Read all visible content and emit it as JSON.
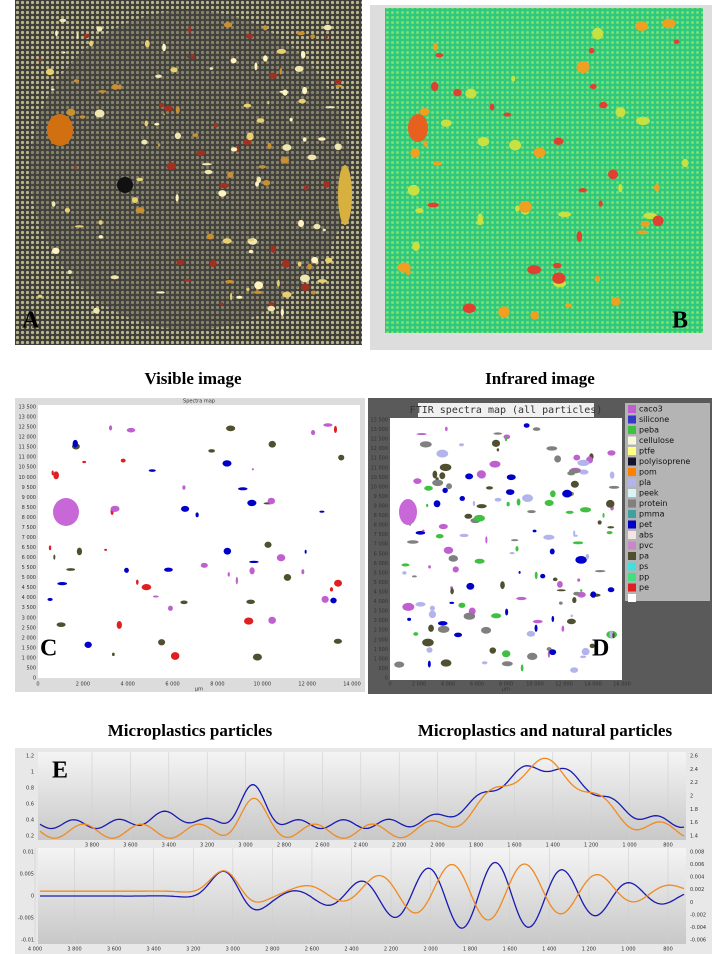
{
  "panels": {
    "a": {
      "letter": "A",
      "caption": "Visible image"
    },
    "b": {
      "letter": "B",
      "caption": "Infrared image"
    },
    "c": {
      "letter": "C",
      "title": "Spectra map",
      "caption": "Microplastics particles",
      "yticks": [
        "13 500",
        "13 000",
        "12 500",
        "12 000",
        "11 500",
        "11 000",
        "10 500",
        "10 000",
        "9 500",
        "9 000",
        "8 500",
        "8 000",
        "7 500",
        "7 000",
        "6 500",
        "6 000",
        "5 500",
        "5 000",
        "4 500",
        "4 000",
        "3 500",
        "3 000",
        "2 500",
        "2 000",
        "1 500",
        "1 000",
        "500",
        "0"
      ],
      "xticks": [
        "0",
        "2 000",
        "4 000",
        "6 000",
        "8 000",
        "10 000",
        "12 000",
        "14 000"
      ],
      "xunit": "µm"
    },
    "d": {
      "letter": "D",
      "title": "FTIR spectra map (all particles)",
      "caption": "Microplastics and natural particles",
      "yticks": [
        "13 500",
        "13 000",
        "12 500",
        "12 000",
        "11 500",
        "11 000",
        "10 500",
        "10 000",
        "9 500",
        "9 000",
        "8 500",
        "8 000",
        "7 500",
        "7 000",
        "6 500",
        "6 000",
        "5 500",
        "5 000",
        "4 500",
        "4 000",
        "3 500",
        "3 000",
        "2 500",
        "2 000",
        "1 500",
        "1 000",
        "500",
        "0"
      ],
      "xticks": [
        "0",
        "2 000",
        "4 000",
        "6 000",
        "8 000",
        "10 000",
        "12 000",
        "14 000",
        "16 000"
      ],
      "xunit": "µm",
      "legend": [
        {
          "name": "caco3",
          "color": "#c060d0"
        },
        {
          "name": "silicone",
          "color": "#3838c8"
        },
        {
          "name": "peba",
          "color": "#40c040"
        },
        {
          "name": "cellulose",
          "color": "#f8f8e0"
        },
        {
          "name": "ptfe",
          "color": "#ffff80"
        },
        {
          "name": "polyisoprene",
          "color": "#141430"
        },
        {
          "name": "pom",
          "color": "#ff8000"
        },
        {
          "name": "pla",
          "color": "#b4b4ec"
        },
        {
          "name": "peek",
          "color": "#d8f4f4"
        },
        {
          "name": "protein",
          "color": "#808080"
        },
        {
          "name": "pmma",
          "color": "#40a0a0"
        },
        {
          "name": "pet",
          "color": "#0000c8"
        },
        {
          "name": "abs",
          "color": "#f4e4e4"
        },
        {
          "name": "pvc",
          "color": "#c888c8"
        },
        {
          "name": "pa",
          "color": "#505030"
        },
        {
          "name": "ps",
          "color": "#40e0e0"
        },
        {
          "name": "pp",
          "color": "#40e080"
        },
        {
          "name": "pe",
          "color": "#e02020"
        }
      ]
    },
    "e": {
      "letter": "E",
      "top": {
        "xticks": [
          "3 800",
          "3 600",
          "3 400",
          "3 200",
          "3 000",
          "2 800",
          "2 600",
          "2 400",
          "2 200",
          "2 000",
          "1 800",
          "1 600",
          "1 400",
          "1 200",
          "1 000",
          "800"
        ],
        "yticks": [
          "1.2",
          "1",
          "0.8",
          "0.6",
          "0.4",
          "0.2"
        ],
        "y2ticks": [
          "2.6",
          "2.4",
          "2.2",
          "2",
          "1.8",
          "1.6",
          "1.4"
        ]
      },
      "bottom": {
        "xticks": [
          "4 000",
          "3 800",
          "3 600",
          "3 400",
          "3 200",
          "3 000",
          "2 800",
          "2 600",
          "2 400",
          "2 200",
          "2 000",
          "1 800",
          "1 600",
          "1 400",
          "1 200",
          "1 000",
          "800"
        ],
        "yticks": [
          "0.01",
          "0.005",
          "0",
          "-0.005",
          "-0.01"
        ],
        "y2ticks": [
          "0.008",
          "0.006",
          "0.004",
          "0.002",
          "0",
          "-0.002",
          "-0.004",
          "-0.006"
        ]
      }
    }
  }
}
